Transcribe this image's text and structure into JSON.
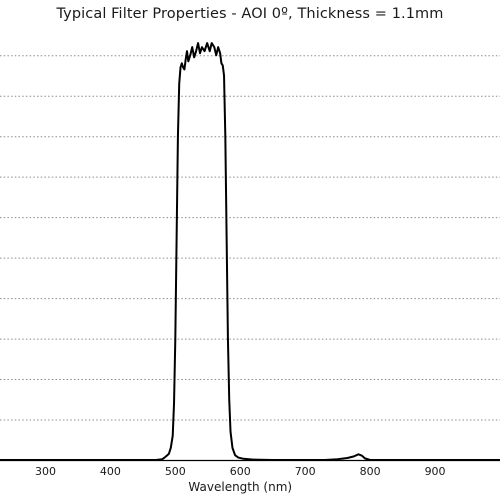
{
  "chart_data": {
    "type": "line",
    "title": "Typical Filter Properties - AOI 0º, Thickness = 1.1mm",
    "xlabel": "Wavelength (nm)",
    "ylabel": "",
    "xlim": [
      230,
      1000
    ],
    "ylim": [
      0,
      105
    ],
    "x_ticks": [
      300,
      400,
      500,
      600,
      700,
      800,
      900
    ],
    "y_gridlines": [
      10,
      20,
      30,
      40,
      50,
      60,
      70,
      80,
      90,
      100
    ],
    "grid": true,
    "series": [
      {
        "name": "",
        "points": [
          [
            230,
            0
          ],
          [
            300,
            0
          ],
          [
            400,
            0
          ],
          [
            470,
            0
          ],
          [
            480,
            0.2
          ],
          [
            485,
            0.8
          ],
          [
            490,
            1.5
          ],
          [
            493,
            3
          ],
          [
            496,
            6
          ],
          [
            498,
            14
          ],
          [
            500,
            30
          ],
          [
            502,
            55
          ],
          [
            504,
            80
          ],
          [
            506,
            93
          ],
          [
            508,
            97
          ],
          [
            510,
            98
          ],
          [
            512,
            97
          ],
          [
            514,
            96.5
          ],
          [
            516,
            99
          ],
          [
            518,
            101
          ],
          [
            520,
            98.5
          ],
          [
            523,
            100
          ],
          [
            526,
            102
          ],
          [
            529,
            99.5
          ],
          [
            532,
            101
          ],
          [
            535,
            103
          ],
          [
            538,
            100.5
          ],
          [
            541,
            102
          ],
          [
            545,
            101
          ],
          [
            549,
            103
          ],
          [
            553,
            101
          ],
          [
            556,
            103
          ],
          [
            560,
            102
          ],
          [
            563,
            100
          ],
          [
            566,
            102
          ],
          [
            569,
            100.5
          ],
          [
            571,
            98
          ],
          [
            573,
            97.5
          ],
          [
            575,
            95
          ],
          [
            577,
            80
          ],
          [
            579,
            55
          ],
          [
            581,
            30
          ],
          [
            583,
            15
          ],
          [
            585,
            7
          ],
          [
            588,
            3
          ],
          [
            592,
            1.2
          ],
          [
            597,
            0.6
          ],
          [
            605,
            0.3
          ],
          [
            620,
            0.1
          ],
          [
            650,
            0
          ],
          [
            700,
            0
          ],
          [
            730,
            0
          ],
          [
            750,
            0.2
          ],
          [
            765,
            0.5
          ],
          [
            775,
            0.9
          ],
          [
            782,
            1.4
          ],
          [
            787,
            1.1
          ],
          [
            792,
            0.4
          ],
          [
            800,
            0
          ],
          [
            900,
            0
          ],
          [
            1000,
            0
          ]
        ]
      }
    ]
  }
}
